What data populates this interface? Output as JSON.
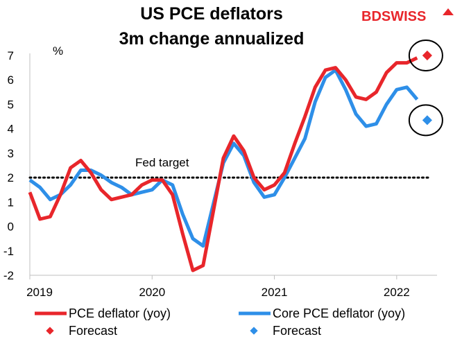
{
  "chart_data": {
    "type": "line",
    "title": "US PCE deflators",
    "subtitle": "3m change annualized",
    "ylabel": "%",
    "ylim": [
      -2,
      7
    ],
    "yticks": [
      -2,
      -1,
      0,
      1,
      2,
      3,
      4,
      5,
      6,
      7
    ],
    "xlim": [
      2019.0,
      2022.33
    ],
    "xticks": [
      {
        "value": 2019,
        "label": "2019"
      },
      {
        "value": 2020,
        "label": "2020"
      },
      {
        "value": 2021,
        "label": "2021"
      },
      {
        "value": 2022,
        "label": "2022"
      }
    ],
    "reference_line": {
      "y": 2,
      "label": "Fed target",
      "style": "dotted"
    },
    "series": [
      {
        "name": "PCE deflator (yoy)",
        "color": "#e8262b",
        "x": [
          2019.0,
          2019.083,
          2019.167,
          2019.25,
          2019.333,
          2019.417,
          2019.5,
          2019.583,
          2019.667,
          2019.75,
          2019.833,
          2019.917,
          2020.0,
          2020.083,
          2020.167,
          2020.25,
          2020.333,
          2020.417,
          2020.5,
          2020.583,
          2020.667,
          2020.75,
          2020.833,
          2020.917,
          2021.0,
          2021.083,
          2021.167,
          2021.25,
          2021.333,
          2021.417,
          2021.5,
          2021.583,
          2021.667,
          2021.75,
          2021.833,
          2021.917,
          2022.0,
          2022.083,
          2022.167
        ],
        "values": [
          1.4,
          0.3,
          0.4,
          1.3,
          2.4,
          2.7,
          2.2,
          1.5,
          1.1,
          1.2,
          1.3,
          1.7,
          1.9,
          1.9,
          1.3,
          -0.3,
          -1.8,
          -1.6,
          0.6,
          2.8,
          3.7,
          3.1,
          2.0,
          1.5,
          1.7,
          2.2,
          3.4,
          4.5,
          5.7,
          6.4,
          6.5,
          6.0,
          5.3,
          5.2,
          5.5,
          6.3,
          6.7,
          6.7,
          6.9
        ]
      },
      {
        "name": "Core PCE deflator (yoy)",
        "color": "#2e8fe8",
        "x": [
          2019.0,
          2019.083,
          2019.167,
          2019.25,
          2019.333,
          2019.417,
          2019.5,
          2019.583,
          2019.667,
          2019.75,
          2019.833,
          2019.917,
          2020.0,
          2020.083,
          2020.167,
          2020.25,
          2020.333,
          2020.417,
          2020.5,
          2020.583,
          2020.667,
          2020.75,
          2020.833,
          2020.917,
          2021.0,
          2021.083,
          2021.167,
          2021.25,
          2021.333,
          2021.417,
          2021.5,
          2021.583,
          2021.667,
          2021.75,
          2021.833,
          2021.917,
          2022.0,
          2022.083,
          2022.167
        ],
        "values": [
          1.9,
          1.6,
          1.1,
          1.3,
          1.7,
          2.3,
          2.3,
          2.1,
          1.8,
          1.6,
          1.3,
          1.4,
          1.5,
          1.9,
          1.7,
          0.5,
          -0.5,
          -0.8,
          0.9,
          2.6,
          3.4,
          2.9,
          1.8,
          1.2,
          1.3,
          2.0,
          2.8,
          3.6,
          5.1,
          6.1,
          6.4,
          5.6,
          4.6,
          4.1,
          4.2,
          5.0,
          5.6,
          5.7,
          5.2
        ]
      }
    ],
    "forecasts": [
      {
        "name": "Forecast",
        "series": "PCE deflator (yoy)",
        "x": 2022.25,
        "value": 7.0,
        "color": "#e8262b"
      },
      {
        "name": "Forecast",
        "series": "Core PCE deflator (yoy)",
        "x": 2022.25,
        "value": 4.35,
        "color": "#2e8fe8"
      }
    ],
    "legend": {
      "placement": "bottom",
      "entries": [
        {
          "label": "PCE deflator (yoy)",
          "kind": "line",
          "color": "#e8262b"
        },
        {
          "label": "Core PCE deflator (yoy)",
          "kind": "line",
          "color": "#2e8fe8"
        },
        {
          "label": "Forecast",
          "kind": "diamond",
          "color": "#e8262b"
        },
        {
          "label": "Forecast",
          "kind": "diamond",
          "color": "#2e8fe8"
        }
      ]
    }
  },
  "logo": {
    "text_bd": "BD",
    "text_swiss": "SWISS",
    "color_bd": "#e8262b",
    "color_swiss": "#e8262b"
  }
}
